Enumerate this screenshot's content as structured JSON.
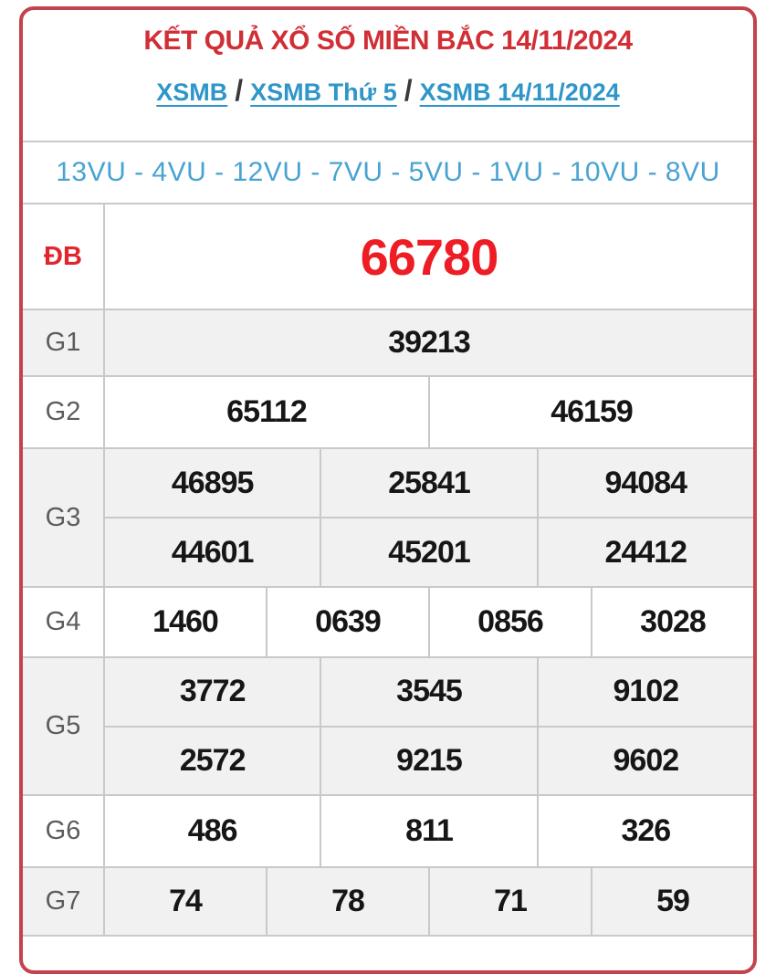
{
  "header": {
    "title": "KẾT QUẢ XỔ SỐ MIỀN BẮC 14/11/2024",
    "breadcrumb": [
      {
        "label": "XSMB"
      },
      {
        "label": "XSMB Thứ 5"
      },
      {
        "label": "XSMB 14/11/2024"
      }
    ],
    "separator": "/",
    "loto_line": "13VU - 4VU - 12VU - 7VU - 5VU - 1VU - 10VU - 8VU"
  },
  "results": {
    "rows": [
      {
        "id": "DB",
        "label": "ĐB",
        "values": [
          "66780"
        ]
      },
      {
        "id": "G1",
        "label": "G1",
        "values": [
          "39213"
        ]
      },
      {
        "id": "G2",
        "label": "G2",
        "values": [
          "65112",
          "46159"
        ]
      },
      {
        "id": "G3",
        "label": "G3",
        "values": [
          "46895",
          "25841",
          "94084",
          "44601",
          "45201",
          "24412"
        ]
      },
      {
        "id": "G4",
        "label": "G4",
        "values": [
          "1460",
          "0639",
          "0856",
          "3028"
        ]
      },
      {
        "id": "G5",
        "label": "G5",
        "values": [
          "3772",
          "3545",
          "9102",
          "2572",
          "9215",
          "9602"
        ]
      },
      {
        "id": "G6",
        "label": "G6",
        "values": [
          "486",
          "811",
          "326"
        ]
      },
      {
        "id": "G7",
        "label": "G7",
        "values": [
          "74",
          "78",
          "71",
          "59"
        ]
      }
    ]
  },
  "colors": {
    "card_border": "#c3434c",
    "title_red": "#d02f36",
    "jackpot_red": "#ee1c24",
    "db_label_red": "#e0262d",
    "link_blue": "#2e96c8",
    "loto_blue": "#49a3d2",
    "row_alt_bg": "#f1f1f1",
    "grid_line": "#c9c9c9",
    "number_black": "#161616",
    "label_gray": "#5c5c5c"
  }
}
